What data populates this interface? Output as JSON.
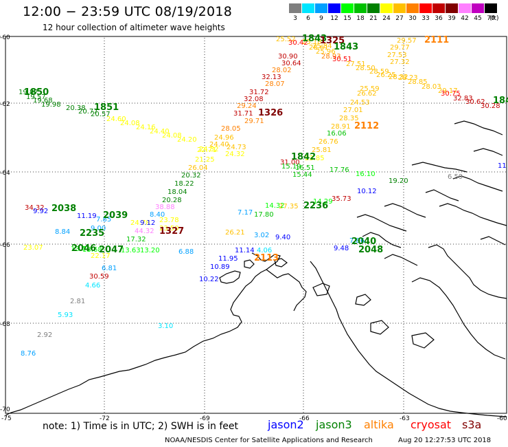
{
  "title": "12:00 − 23:59 UTC 08/19/2018",
  "subtitle": "12 hour collection of altimeter wave heights",
  "legend": {
    "unit": "(ft)",
    "bins": [
      {
        "label": "3",
        "color": "#7f7f7f"
      },
      {
        "label": "6",
        "color": "#00e5ff"
      },
      {
        "label": "9",
        "color": "#00a0ff"
      },
      {
        "label": "12",
        "color": "#0000ff"
      },
      {
        "label": "15",
        "color": "#00ff00"
      },
      {
        "label": "18",
        "color": "#00c000"
      },
      {
        "label": "21",
        "color": "#008000"
      },
      {
        "label": "24",
        "color": "#ffff00"
      },
      {
        "label": "27",
        "color": "#ffc000"
      },
      {
        "label": "30",
        "color": "#ff8000"
      },
      {
        "label": "33",
        "color": "#ff0000"
      },
      {
        "label": "36",
        "color": "#c00000"
      },
      {
        "label": "39",
        "color": "#800000"
      },
      {
        "label": "42",
        "color": "#ff80ff"
      },
      {
        "label": "45",
        "color": "#c000c0"
      },
      {
        "label": "70",
        "color": "#000000"
      }
    ]
  },
  "lat_labels": [
    "-60",
    "-62",
    "-64",
    "-66",
    "-68",
    "-70"
  ],
  "lon_labels": [
    "-75",
    "-72",
    "-69",
    "-66",
    "-63",
    "-60"
  ],
  "note": "note:  1) Time is in UTC;  2) SWH is in feet",
  "satellites": [
    {
      "name": "jason2",
      "color": "#0000ff"
    },
    {
      "name": "jason3",
      "color": "#008000"
    },
    {
      "name": "altika",
      "color": "#ff8000"
    },
    {
      "name": "cryosat",
      "color": "#ff0000"
    },
    {
      "name": "s3a",
      "color": "#800000"
    }
  ],
  "credit": "NOAA/NESDIS Center for Satellite Applications and Research",
  "generated": "Aug 20 12:27:53 UTC 2018",
  "passes": [
    {
      "label": "1850",
      "color": "#008000"
    },
    {
      "label": "1851",
      "color": "#008000"
    },
    {
      "label": "1326",
      "color": "#800000"
    },
    {
      "label": "1843",
      "color": "#008000"
    },
    {
      "label": "1325",
      "color": "#800000"
    },
    {
      "label": "1843",
      "color": "#008000"
    },
    {
      "label": "2111",
      "color": "#ff8000"
    },
    {
      "label": "1842",
      "color": "#008000"
    },
    {
      "label": "2112",
      "color": "#ff8000"
    },
    {
      "label": "2038",
      "color": "#008000"
    },
    {
      "label": "2039",
      "color": "#008000"
    },
    {
      "label": "2235",
      "color": "#008000"
    },
    {
      "label": "1327",
      "color": "#800000"
    },
    {
      "label": "2046",
      "color": "#008000"
    },
    {
      "label": "2047",
      "color": "#008000"
    },
    {
      "label": "2236",
      "color": "#008000"
    },
    {
      "label": "2113",
      "color": "#ff8000"
    },
    {
      "label": "2040",
      "color": "#008000"
    },
    {
      "label": "2048",
      "color": "#008000"
    },
    {
      "label": "184",
      "color": "#008000"
    }
  ],
  "observations": [
    {
      "v": "19.87",
      "c": "#008000"
    },
    {
      "v": "19.57",
      "c": "#008000"
    },
    {
      "v": "19.68",
      "c": "#008000"
    },
    {
      "v": "19.98",
      "c": "#008000"
    },
    {
      "v": "20.38",
      "c": "#008000"
    },
    {
      "v": "20.77",
      "c": "#008000"
    },
    {
      "v": "20.57",
      "c": "#008000"
    },
    {
      "v": "24.60",
      "c": "#ffff00"
    },
    {
      "v": "24.08",
      "c": "#ffff00"
    },
    {
      "v": "24.16",
      "c": "#ffff00"
    },
    {
      "v": "24.40",
      "c": "#ffff00"
    },
    {
      "v": "24.08",
      "c": "#ffff00"
    },
    {
      "v": "24.20",
      "c": "#ffff00"
    },
    {
      "v": "24.32",
      "c": "#ffff00"
    },
    {
      "v": "24.32",
      "c": "#ffff00"
    },
    {
      "v": "25.52",
      "c": "#ffc000"
    },
    {
      "v": "25.18",
      "c": "#ffc000"
    },
    {
      "v": "25.84",
      "c": "#ffc000"
    },
    {
      "v": "30.42",
      "c": "#ff0000"
    },
    {
      "v": "30.90",
      "c": "#c00000"
    },
    {
      "v": "30.64",
      "c": "#c00000"
    },
    {
      "v": "28.02",
      "c": "#ff8000"
    },
    {
      "v": "32.13",
      "c": "#c00000"
    },
    {
      "v": "28.07",
      "c": "#ff8000"
    },
    {
      "v": "31.72",
      "c": "#c00000"
    },
    {
      "v": "32.08",
      "c": "#c00000"
    },
    {
      "v": "29.24",
      "c": "#ff8000"
    },
    {
      "v": "31.71",
      "c": "#c00000"
    },
    {
      "v": "29.71",
      "c": "#ff8000"
    },
    {
      "v": "28.05",
      "c": "#ff8000"
    },
    {
      "v": "24.96",
      "c": "#ffc000"
    },
    {
      "v": "24.40",
      "c": "#ffc000"
    },
    {
      "v": "24.73",
      "c": "#ffc000"
    },
    {
      "v": "22.71",
      "c": "#ffff00"
    },
    {
      "v": "21.25",
      "c": "#ffff00"
    },
    {
      "v": "26.04",
      "c": "#ffc000"
    },
    {
      "v": "20.32",
      "c": "#008000"
    },
    {
      "v": "18.22",
      "c": "#008000"
    },
    {
      "v": "18.04",
      "c": "#008000"
    },
    {
      "v": "20.28",
      "c": "#008000"
    },
    {
      "v": "28.61",
      "c": "#ffc000"
    },
    {
      "v": "25.96",
      "c": "#ffc000"
    },
    {
      "v": "28.93",
      "c": "#ff8000"
    },
    {
      "v": "30.51",
      "c": "#ff0000"
    },
    {
      "v": "27.51",
      "c": "#ffc000"
    },
    {
      "v": "28.50",
      "c": "#ffc000"
    },
    {
      "v": "28.59",
      "c": "#ffc000"
    },
    {
      "v": "26.25",
      "c": "#ffc000"
    },
    {
      "v": "28.32",
      "c": "#ffc000"
    },
    {
      "v": "29.57",
      "c": "#ffc000"
    },
    {
      "v": "29.77",
      "c": "#ffc000"
    },
    {
      "v": "27.53",
      "c": "#ffc000"
    },
    {
      "v": "27.32",
      "c": "#ffc000"
    },
    {
      "v": "28.23",
      "c": "#ffc000"
    },
    {
      "v": "28.85",
      "c": "#ffc000"
    },
    {
      "v": "28.03",
      "c": "#ffc000"
    },
    {
      "v": "29.17",
      "c": "#ffc000"
    },
    {
      "v": "30.75",
      "c": "#ff0000"
    },
    {
      "v": "32.83",
      "c": "#c00000"
    },
    {
      "v": "30.62",
      "c": "#c00000"
    },
    {
      "v": "30.28",
      "c": "#c00000"
    },
    {
      "v": "25.59",
      "c": "#ffc000"
    },
    {
      "v": "26.62",
      "c": "#ffc000"
    },
    {
      "v": "24.53",
      "c": "#ffc000"
    },
    {
      "v": "27.01",
      "c": "#ffc000"
    },
    {
      "v": "28.35",
      "c": "#ffc000"
    },
    {
      "v": "28.91",
      "c": "#ffc000"
    },
    {
      "v": "16.06",
      "c": "#00c000"
    },
    {
      "v": "26.76",
      "c": "#ffc000"
    },
    {
      "v": "25.81",
      "c": "#ffc000"
    },
    {
      "v": "23.85",
      "c": "#ffff00"
    },
    {
      "v": "31.00",
      "c": "#c00000"
    },
    {
      "v": "15.19",
      "c": "#00c000"
    },
    {
      "v": "16.51",
      "c": "#00c000"
    },
    {
      "v": "15.44",
      "c": "#00c000"
    },
    {
      "v": "17.76",
      "c": "#00c000"
    },
    {
      "v": "16.10",
      "c": "#00ff00"
    },
    {
      "v": "19.20",
      "c": "#008000"
    },
    {
      "v": "10.12",
      "c": "#0000ff"
    },
    {
      "v": "6.59",
      "c": "#7f7f7f"
    },
    {
      "v": "11",
      "c": "#0000ff"
    },
    {
      "v": "34.32",
      "c": "#c00000"
    },
    {
      "v": "9.92",
      "c": "#0000ff"
    },
    {
      "v": "11.19",
      "c": "#0000ff"
    },
    {
      "v": "8.84",
      "c": "#00a0ff"
    },
    {
      "v": "7.85",
      "c": "#00a0ff"
    },
    {
      "v": "9.00",
      "c": "#00a0ff"
    },
    {
      "v": "38.88",
      "c": "#ff80ff"
    },
    {
      "v": "8.40",
      "c": "#00a0ff"
    },
    {
      "v": "24.78",
      "c": "#ffff00"
    },
    {
      "v": "9.12",
      "c": "#0000ff"
    },
    {
      "v": "44.32",
      "c": "#ff80ff"
    },
    {
      "v": "17.32",
      "c": "#00c000"
    },
    {
      "v": "23.78",
      "c": "#ffff00"
    },
    {
      "v": "23.50",
      "c": "#ffff00"
    },
    {
      "v": "7.17",
      "c": "#00a0ff"
    },
    {
      "v": "14.32",
      "c": "#00ff00"
    },
    {
      "v": "27.35",
      "c": "#ffc000"
    },
    {
      "v": "17.80",
      "c": "#00c000"
    },
    {
      "v": "14.29",
      "c": "#00ff00"
    },
    {
      "v": "35.73",
      "c": "#c00000"
    },
    {
      "v": "26.21",
      "c": "#ffc000"
    },
    {
      "v": "3.02",
      "c": "#00a0ff"
    },
    {
      "v": "9.40",
      "c": "#0000ff"
    },
    {
      "v": "7.86",
      "c": "#00a0ff"
    },
    {
      "v": "9.48",
      "c": "#0000ff"
    },
    {
      "v": "23.07",
      "c": "#ffff00"
    },
    {
      "v": "13.71",
      "c": "#00ff00"
    },
    {
      "v": "13.68",
      "c": "#00ff00"
    },
    {
      "v": "22.17",
      "c": "#ffff00"
    },
    {
      "v": "13.63",
      "c": "#00ff00"
    },
    {
      "v": "13.20",
      "c": "#00ff00"
    },
    {
      "v": "6.88",
      "c": "#00a0ff"
    },
    {
      "v": "11.14",
      "c": "#0000ff"
    },
    {
      "v": "4.06",
      "c": "#00e5ff"
    },
    {
      "v": "11.95",
      "c": "#0000ff"
    },
    {
      "v": "10.89",
      "c": "#0000ff"
    },
    {
      "v": "10.22",
      "c": "#0000ff"
    },
    {
      "v": "6.81",
      "c": "#00a0ff"
    },
    {
      "v": "30.59",
      "c": "#c00000"
    },
    {
      "v": "4.66",
      "c": "#00e5ff"
    },
    {
      "v": "2.81",
      "c": "#7f7f7f"
    },
    {
      "v": "5.93",
      "c": "#00e5ff"
    },
    {
      "v": "3.10",
      "c": "#00e5ff"
    },
    {
      "v": "2.92",
      "c": "#7f7f7f"
    },
    {
      "v": "8.76",
      "c": "#00a0ff"
    }
  ]
}
